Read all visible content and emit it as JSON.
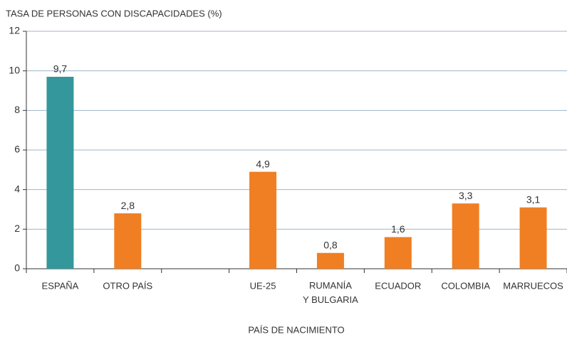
{
  "chart_data": {
    "type": "bar",
    "title": "TASA DE PERSONAS CON DISCAPACIDADES (%)",
    "x_label": "PAÍS DE NACIMIENTO",
    "categories": [
      "ESPAÑA",
      "OTRO PAÍS",
      null,
      "UE-25",
      "RUMANÍA\nY BULGARIA",
      "ECUADOR",
      "COLOMBIA",
      "MARRUECOS"
    ],
    "values": [
      9.7,
      2.8,
      null,
      4.9,
      0.8,
      1.6,
      3.3,
      3.1
    ],
    "value_labels": [
      "9,7",
      "2,8",
      null,
      "4,9",
      "0,8",
      "1,6",
      "3,3",
      "3,1"
    ],
    "colors": [
      "#33979b",
      "#f07f23",
      null,
      "#f07f23",
      "#f07f23",
      "#f07f23",
      "#f07f23",
      "#f07f23"
    ],
    "ylim": [
      0,
      12
    ],
    "yticks": [
      0,
      2,
      4,
      6,
      8,
      10,
      12
    ],
    "grid": true
  }
}
